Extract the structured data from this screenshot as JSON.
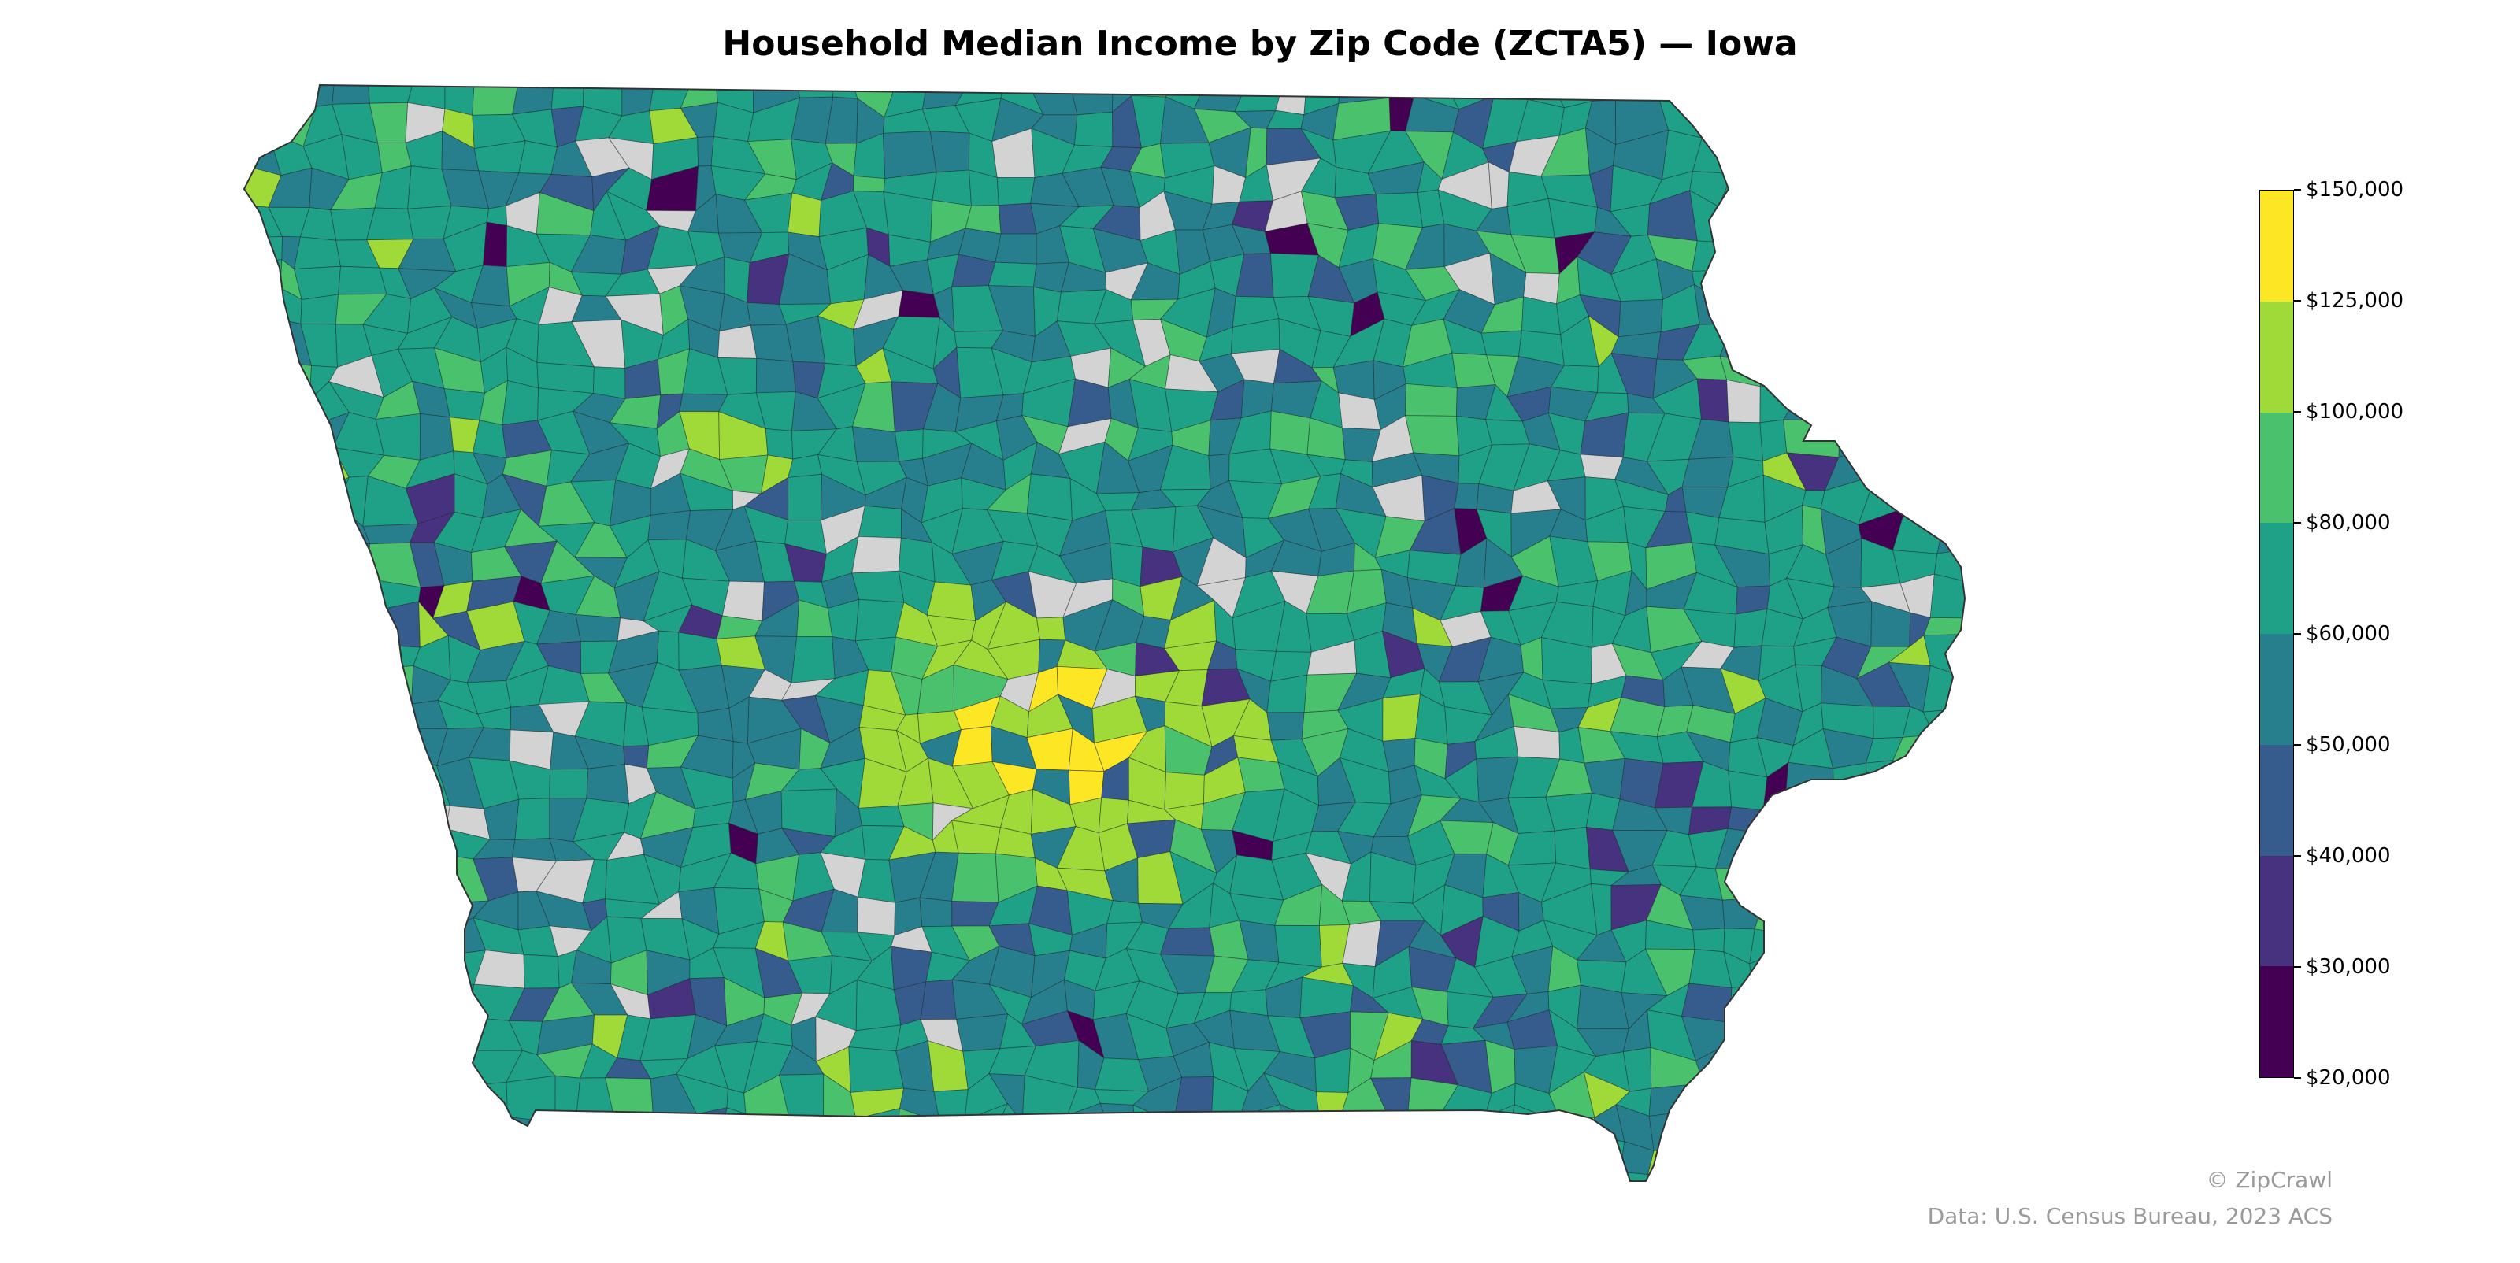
{
  "title": "Household Median Income by Zip Code (ZCTA5) — Iowa",
  "legend": {
    "colors": [
      "#fde725",
      "#a0da39",
      "#4ac16d",
      "#1fa187",
      "#277f8e",
      "#365c8d",
      "#46327e",
      "#440154"
    ],
    "ticks": [
      "$150,000",
      "$125,000",
      "$100,000",
      "$80,000",
      "$60,000",
      "$50,000",
      "$40,000",
      "$30,000",
      "$20,000"
    ],
    "bins": [
      20000,
      30000,
      40000,
      50000,
      60000,
      80000,
      100000,
      125000,
      150000
    ],
    "no_data_color": "#d3d3d3"
  },
  "footer": {
    "copyright": "© ZipCrawl",
    "source": "Data: U.S. Census Bureau, 2023 ACS"
  }
}
